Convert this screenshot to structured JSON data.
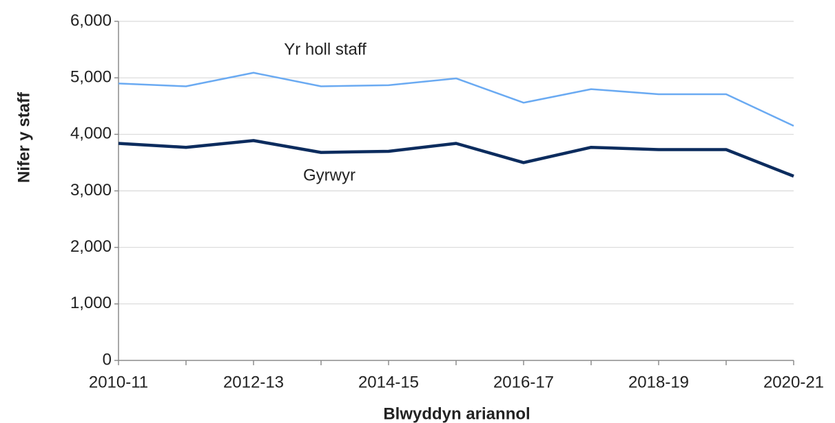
{
  "chart_data": {
    "type": "line",
    "x_label": "Blwyddyn ariannol",
    "y_label": "Nifer y staff",
    "categories": [
      "2010-11",
      null,
      "2012-13",
      null,
      "2014-15",
      null,
      "2016-17",
      null,
      "2018-19",
      null,
      "2020-21"
    ],
    "series": [
      {
        "name": "Yr holl staff",
        "color": "#6aaaf2",
        "values": [
          4900,
          4850,
          5090,
          4850,
          4870,
          4990,
          4560,
          4800,
          4710,
          4710,
          4150
        ]
      },
      {
        "name": "Gyrwyr",
        "color": "#0c2c5e",
        "values": [
          3840,
          3770,
          3890,
          3680,
          3700,
          3840,
          3500,
          3770,
          3730,
          3730,
          3260
        ]
      }
    ],
    "ylim": [
      0,
      6000
    ],
    "yticks": [
      0,
      {
        "value": 1000,
        "label": "1,000"
      },
      {
        "value": 2000,
        "label": "2,000"
      },
      {
        "value": 3000,
        "label": "3,000"
      },
      {
        "value": 4000,
        "label": "4,000"
      },
      {
        "value": 5000,
        "label": "5,000"
      },
      {
        "value": 6000,
        "label": "6,000"
      }
    ],
    "grid": true
  }
}
